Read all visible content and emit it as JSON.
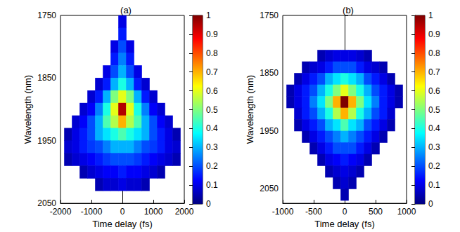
{
  "chart_data": [
    {
      "type": "heatmap",
      "title": "(a)",
      "x_label": "Time delay (fs)",
      "y_label": "Wavelength (nm)",
      "xlim": [
        -2000,
        2000
      ],
      "xticks": [
        -2000,
        -1000,
        0,
        1000,
        2000
      ],
      "ylim": [
        1750,
        2050
      ],
      "yticks": [
        1750,
        1850,
        1950,
        2050
      ],
      "x": [
        -2000,
        -1750,
        -1500,
        -1250,
        -1000,
        -750,
        -500,
        -250,
        0,
        250,
        500,
        750,
        1000,
        1250,
        1500,
        1750,
        2000
      ],
      "y": [
        1760,
        1780,
        1800,
        1820,
        1840,
        1860,
        1880,
        1900,
        1920,
        1940,
        1960,
        1980,
        2000,
        2020
      ],
      "values": [
        [
          null,
          null,
          null,
          null,
          null,
          null,
          null,
          null,
          0.1,
          null,
          null,
          null,
          null,
          null,
          null,
          null,
          null
        ],
        [
          null,
          null,
          null,
          null,
          null,
          null,
          null,
          null,
          0.15,
          null,
          null,
          null,
          null,
          null,
          null,
          null,
          null
        ],
        [
          null,
          null,
          null,
          null,
          null,
          null,
          null,
          0.1,
          0.2,
          0.1,
          null,
          null,
          null,
          null,
          null,
          null,
          null
        ],
        [
          null,
          null,
          null,
          null,
          null,
          null,
          null,
          0.15,
          0.25,
          0.15,
          null,
          null,
          null,
          null,
          null,
          null,
          null
        ],
        [
          null,
          null,
          null,
          null,
          null,
          null,
          0.1,
          0.2,
          0.3,
          0.2,
          0.1,
          null,
          null,
          null,
          null,
          null,
          null
        ],
        [
          null,
          null,
          null,
          null,
          null,
          0.08,
          0.15,
          0.3,
          0.4,
          0.3,
          0.15,
          0.08,
          null,
          null,
          null,
          null,
          null
        ],
        [
          null,
          null,
          null,
          null,
          0.08,
          0.15,
          0.3,
          0.5,
          0.6,
          0.5,
          0.3,
          0.15,
          0.08,
          null,
          null,
          null,
          null
        ],
        [
          null,
          null,
          null,
          0.08,
          0.12,
          0.25,
          0.4,
          0.6,
          0.95,
          0.6,
          0.4,
          0.25,
          0.12,
          0.08,
          null,
          null,
          null
        ],
        [
          null,
          null,
          0.08,
          0.12,
          0.2,
          0.3,
          0.45,
          0.55,
          0.7,
          0.55,
          0.45,
          0.3,
          0.2,
          0.12,
          0.08,
          null,
          null
        ],
        [
          null,
          0.05,
          0.1,
          0.15,
          0.2,
          0.3,
          0.35,
          0.4,
          0.45,
          0.4,
          0.35,
          0.3,
          0.2,
          0.15,
          0.1,
          0.05,
          null
        ],
        [
          null,
          0.08,
          0.1,
          0.15,
          0.18,
          0.2,
          0.25,
          0.3,
          0.3,
          0.3,
          0.25,
          0.2,
          0.18,
          0.15,
          0.1,
          0.08,
          null
        ],
        [
          null,
          0.05,
          0.08,
          0.1,
          0.12,
          0.15,
          0.18,
          0.2,
          0.2,
          0.2,
          0.18,
          0.15,
          0.12,
          0.1,
          0.08,
          0.05,
          null
        ],
        [
          null,
          null,
          null,
          0.05,
          0.08,
          0.1,
          0.12,
          0.12,
          0.15,
          0.12,
          0.12,
          0.1,
          0.08,
          0.05,
          null,
          null,
          null
        ],
        [
          null,
          null,
          null,
          null,
          null,
          0.05,
          0.08,
          0.08,
          0.1,
          0.08,
          0.08,
          0.05,
          null,
          null,
          null,
          null,
          null
        ]
      ],
      "colorbar": {
        "range": [
          0,
          1
        ],
        "ticks": [
          0,
          0.1,
          0.2,
          0.3,
          0.4,
          0.5,
          0.6,
          0.7,
          0.8,
          0.9,
          1
        ]
      }
    },
    {
      "type": "heatmap",
      "title": "(b)",
      "x_label": "Time delay (fs)",
      "y_label": "Wavelength (nm)",
      "xlim": [
        -1000,
        1000
      ],
      "xticks": [
        -1000,
        -500,
        0,
        500,
        1000
      ],
      "ylim": [
        1750,
        2075
      ],
      "yticks": [
        1750,
        1850,
        1950,
        2050
      ],
      "x": [
        -1000,
        -875,
        -750,
        -625,
        -500,
        -375,
        -250,
        -125,
        0,
        125,
        250,
        375,
        500,
        625,
        750,
        875,
        1000
      ],
      "y": [
        1820,
        1840,
        1860,
        1880,
        1900,
        1920,
        1940,
        1960,
        1980,
        2000,
        2020,
        2040,
        2060
      ],
      "values": [
        [
          null,
          null,
          null,
          null,
          null,
          0.05,
          0.08,
          0.1,
          0.1,
          0.1,
          0.08,
          0.05,
          null,
          null,
          null,
          null,
          null
        ],
        [
          null,
          null,
          null,
          0.05,
          0.08,
          0.1,
          0.15,
          0.2,
          0.2,
          0.2,
          0.15,
          0.1,
          0.08,
          0.05,
          null,
          null,
          null
        ],
        [
          null,
          null,
          0.05,
          0.1,
          0.15,
          0.2,
          0.3,
          0.35,
          0.4,
          0.35,
          0.3,
          0.2,
          0.15,
          0.1,
          0.05,
          null,
          null
        ],
        [
          null,
          0.05,
          0.1,
          0.15,
          0.2,
          0.3,
          0.4,
          0.5,
          0.6,
          0.5,
          0.4,
          0.3,
          0.2,
          0.15,
          0.1,
          0.05,
          null
        ],
        [
          null,
          0.05,
          0.1,
          0.15,
          0.25,
          0.35,
          0.5,
          0.7,
          1.0,
          0.7,
          0.5,
          0.35,
          0.25,
          0.15,
          0.1,
          0.05,
          null
        ],
        [
          null,
          null,
          0.08,
          0.15,
          0.2,
          0.3,
          0.4,
          0.55,
          0.7,
          0.55,
          0.4,
          0.3,
          0.2,
          0.15,
          0.08,
          null,
          null
        ],
        [
          null,
          null,
          0.05,
          0.1,
          0.15,
          0.2,
          0.3,
          0.35,
          0.45,
          0.35,
          0.3,
          0.2,
          0.15,
          0.1,
          0.05,
          null,
          null
        ],
        [
          null,
          null,
          null,
          0.05,
          0.1,
          0.15,
          0.2,
          0.25,
          0.3,
          0.25,
          0.2,
          0.15,
          0.1,
          0.05,
          null,
          null,
          null
        ],
        [
          null,
          null,
          null,
          null,
          0.05,
          0.1,
          0.15,
          0.2,
          0.2,
          0.2,
          0.15,
          0.1,
          0.05,
          null,
          null,
          null,
          null
        ],
        [
          null,
          null,
          null,
          null,
          null,
          0.05,
          0.1,
          0.12,
          0.15,
          0.12,
          0.1,
          0.05,
          null,
          null,
          null,
          null,
          null
        ],
        [
          null,
          null,
          null,
          null,
          null,
          null,
          0.05,
          0.08,
          0.1,
          0.08,
          0.05,
          null,
          null,
          null,
          null,
          null,
          null
        ],
        [
          null,
          null,
          null,
          null,
          null,
          null,
          null,
          0.05,
          0.08,
          0.05,
          null,
          null,
          null,
          null,
          null,
          null,
          null
        ],
        [
          null,
          null,
          null,
          null,
          null,
          null,
          null,
          null,
          0.05,
          null,
          null,
          null,
          null,
          null,
          null,
          null,
          null
        ]
      ],
      "colorbar": {
        "range": [
          0,
          1
        ],
        "ticks": [
          0,
          0.1,
          0.2,
          0.3,
          0.4,
          0.5,
          0.6,
          0.7,
          0.8,
          0.9,
          1
        ]
      }
    }
  ]
}
